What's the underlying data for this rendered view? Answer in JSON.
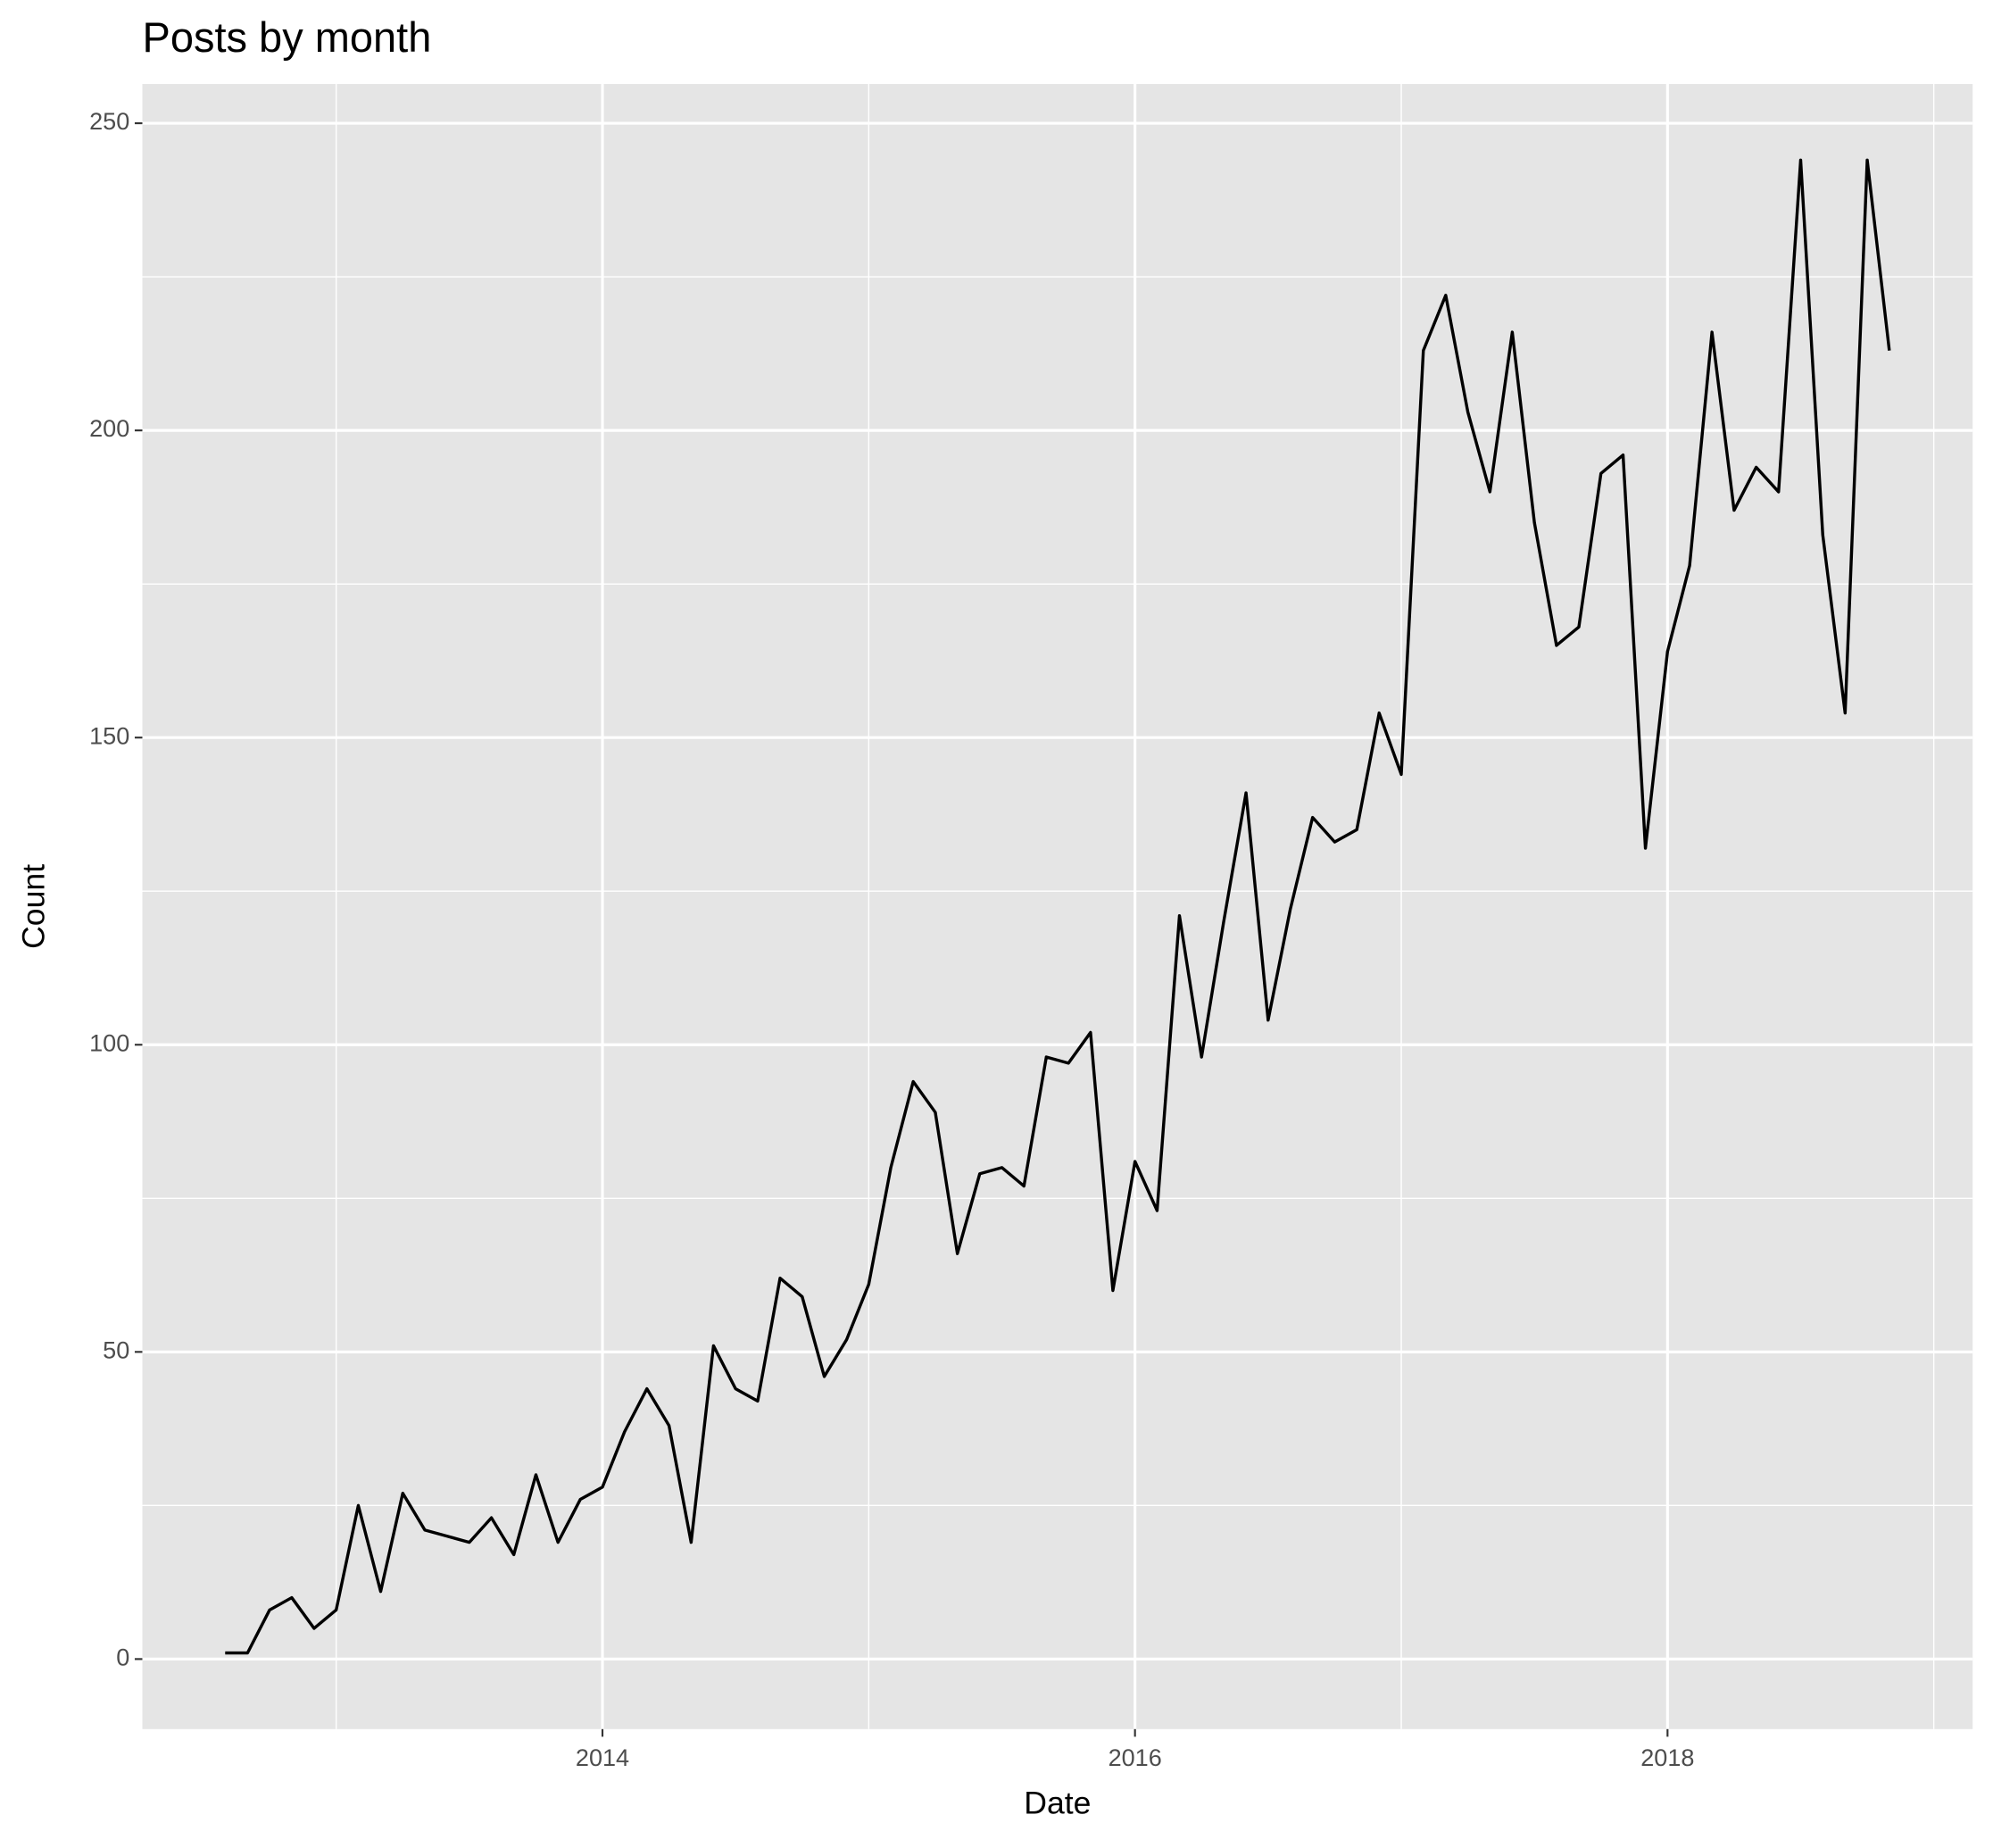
{
  "chart_data": {
    "type": "line",
    "title": "Posts by month",
    "x_label": "Date",
    "y_label": "Count",
    "x": [
      2012.583,
      2012.667,
      2012.75,
      2012.833,
      2012.917,
      2013.0,
      2013.083,
      2013.167,
      2013.25,
      2013.333,
      2013.417,
      2013.5,
      2013.583,
      2013.667,
      2013.75,
      2013.833,
      2013.917,
      2014.0,
      2014.083,
      2014.167,
      2014.25,
      2014.333,
      2014.417,
      2014.5,
      2014.583,
      2014.667,
      2014.75,
      2014.833,
      2014.917,
      2015.0,
      2015.083,
      2015.167,
      2015.25,
      2015.333,
      2015.417,
      2015.5,
      2015.583,
      2015.667,
      2015.75,
      2015.833,
      2015.917,
      2016.0,
      2016.083,
      2016.167,
      2016.25,
      2016.333,
      2016.417,
      2016.5,
      2016.583,
      2016.667,
      2016.75,
      2016.833,
      2016.917,
      2017.0,
      2017.083,
      2017.167,
      2017.25,
      2017.333,
      2017.417,
      2017.5,
      2017.583,
      2017.667,
      2017.75,
      2017.833,
      2017.917,
      2018.0,
      2018.083,
      2018.167,
      2018.25,
      2018.333,
      2018.417,
      2018.5,
      2018.583,
      2018.667,
      2018.75,
      2018.833
    ],
    "series": [
      {
        "name": "Count",
        "color": "#000000",
        "values": [
          1,
          1,
          8,
          10,
          5,
          8,
          25,
          11,
          27,
          21,
          20,
          19,
          23,
          17,
          30,
          19,
          26,
          28,
          37,
          44,
          38,
          19,
          51,
          44,
          42,
          62,
          59,
          46,
          52,
          61,
          80,
          94,
          89,
          66,
          79,
          80,
          77,
          98,
          97,
          102,
          60,
          81,
          73,
          121,
          98,
          120,
          141,
          104,
          122,
          137,
          133,
          135,
          154,
          144,
          213,
          222,
          203,
          190,
          216,
          185,
          165,
          168,
          193,
          196,
          132,
          164,
          178,
          216,
          187,
          194,
          190,
          244,
          183,
          154,
          244,
          213
        ]
      }
    ],
    "xlim": [
      2012.272,
      2019.146
    ],
    "ylim": [
      -11.4,
      256.4
    ],
    "xticks": [
      2014,
      2016,
      2018
    ],
    "yticks": [
      0,
      50,
      100,
      150,
      200,
      250
    ],
    "grid": true,
    "legend": false
  }
}
